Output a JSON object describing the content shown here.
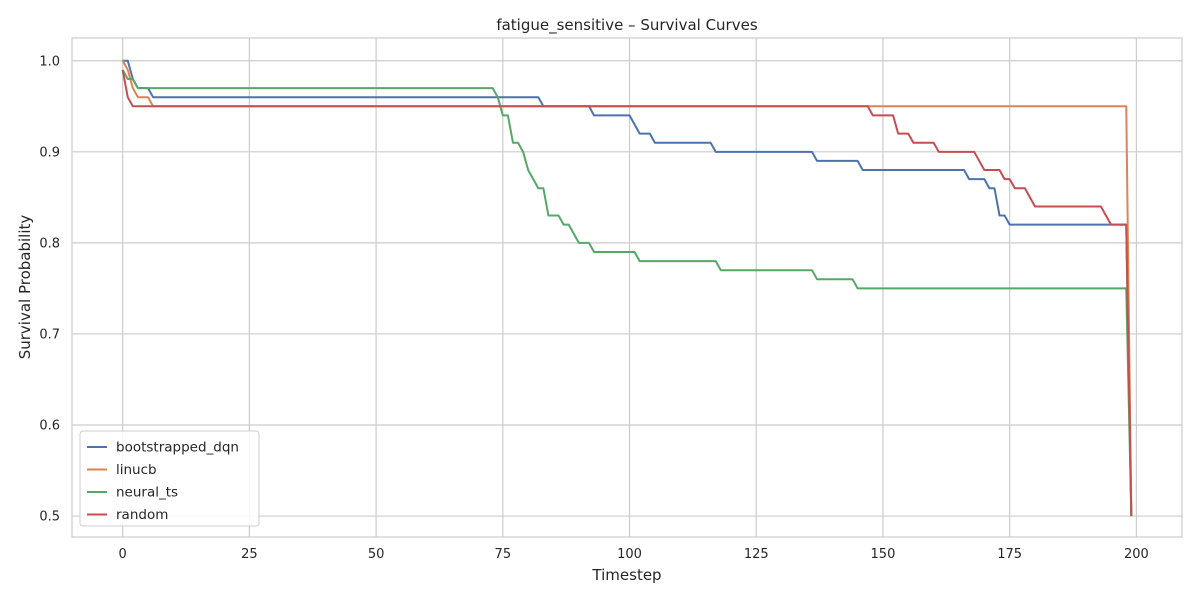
{
  "chart_data": {
    "type": "line",
    "title": "fatigue_sensitive – Survival Curves",
    "xlabel": "Timestep",
    "ylabel": "Survival Probability",
    "xlim": [
      -10,
      209
    ],
    "ylim": [
      0.477,
      1.025
    ],
    "xticks": [
      0,
      25,
      50,
      75,
      100,
      125,
      150,
      175,
      200
    ],
    "yticks": [
      0.5,
      0.6,
      0.7,
      0.8,
      0.9,
      1.0
    ],
    "xtick_labels": [
      "0",
      "25",
      "50",
      "75",
      "100",
      "125",
      "150",
      "175",
      "200"
    ],
    "ytick_labels": [
      "0.5",
      "0.6",
      "0.7",
      "0.8",
      "0.9",
      "1.0"
    ],
    "grid": true,
    "legend_position": "lower-left",
    "series": [
      {
        "name": "bootstrapped_dqn",
        "color": "#4c72b0",
        "points": [
          [
            0,
            1.0
          ],
          [
            1,
            1.0
          ],
          [
            2,
            0.98
          ],
          [
            3,
            0.97
          ],
          [
            4,
            0.97
          ],
          [
            5,
            0.97
          ],
          [
            6,
            0.96
          ],
          [
            82,
            0.96
          ],
          [
            83,
            0.95
          ],
          [
            92,
            0.95
          ],
          [
            93,
            0.94
          ],
          [
            100,
            0.94
          ],
          [
            101,
            0.93
          ],
          [
            102,
            0.92
          ],
          [
            104,
            0.92
          ],
          [
            105,
            0.91
          ],
          [
            116,
            0.91
          ],
          [
            117,
            0.9
          ],
          [
            136,
            0.9
          ],
          [
            137,
            0.89
          ],
          [
            145,
            0.89
          ],
          [
            146,
            0.88
          ],
          [
            166,
            0.88
          ],
          [
            167,
            0.87
          ],
          [
            170,
            0.87
          ],
          [
            171,
            0.86
          ],
          [
            172,
            0.86
          ],
          [
            173,
            0.83
          ],
          [
            174,
            0.83
          ],
          [
            175,
            0.82
          ],
          [
            198,
            0.82
          ],
          [
            199,
            0.5
          ]
        ]
      },
      {
        "name": "linucb",
        "color": "#dd8452",
        "points": [
          [
            0,
            1.0
          ],
          [
            1,
            0.99
          ],
          [
            2,
            0.97
          ],
          [
            3,
            0.96
          ],
          [
            5,
            0.96
          ],
          [
            6,
            0.95
          ],
          [
            198,
            0.95
          ],
          [
            199,
            0.5
          ]
        ]
      },
      {
        "name": "neural_ts",
        "color": "#55a868",
        "points": [
          [
            0,
            0.99
          ],
          [
            1,
            0.98
          ],
          [
            2,
            0.98
          ],
          [
            3,
            0.97
          ],
          [
            73,
            0.97
          ],
          [
            74,
            0.96
          ],
          [
            75,
            0.94
          ],
          [
            76,
            0.94
          ],
          [
            77,
            0.91
          ],
          [
            78,
            0.91
          ],
          [
            79,
            0.9
          ],
          [
            80,
            0.88
          ],
          [
            81,
            0.87
          ],
          [
            82,
            0.86
          ],
          [
            83,
            0.86
          ],
          [
            84,
            0.83
          ],
          [
            86,
            0.83
          ],
          [
            87,
            0.82
          ],
          [
            88,
            0.82
          ],
          [
            89,
            0.81
          ],
          [
            90,
            0.8
          ],
          [
            92,
            0.8
          ],
          [
            93,
            0.79
          ],
          [
            101,
            0.79
          ],
          [
            102,
            0.78
          ],
          [
            117,
            0.78
          ],
          [
            118,
            0.77
          ],
          [
            136,
            0.77
          ],
          [
            137,
            0.76
          ],
          [
            144,
            0.76
          ],
          [
            145,
            0.75
          ],
          [
            198,
            0.75
          ],
          [
            199,
            0.5
          ]
        ]
      },
      {
        "name": "random",
        "color": "#c44e52",
        "points": [
          [
            0,
            0.99
          ],
          [
            1,
            0.96
          ],
          [
            2,
            0.95
          ],
          [
            147,
            0.95
          ],
          [
            148,
            0.94
          ],
          [
            152,
            0.94
          ],
          [
            153,
            0.92
          ],
          [
            155,
            0.92
          ],
          [
            156,
            0.91
          ],
          [
            160,
            0.91
          ],
          [
            161,
            0.9
          ],
          [
            166,
            0.9
          ],
          [
            167,
            0.9
          ],
          [
            168,
            0.9
          ],
          [
            169,
            0.89
          ],
          [
            170,
            0.88
          ],
          [
            173,
            0.88
          ],
          [
            174,
            0.87
          ],
          [
            175,
            0.87
          ],
          [
            176,
            0.86
          ],
          [
            178,
            0.86
          ],
          [
            179,
            0.85
          ],
          [
            180,
            0.84
          ],
          [
            193,
            0.84
          ],
          [
            195,
            0.82
          ],
          [
            198,
            0.82
          ],
          [
            199,
            0.5
          ]
        ]
      }
    ]
  }
}
